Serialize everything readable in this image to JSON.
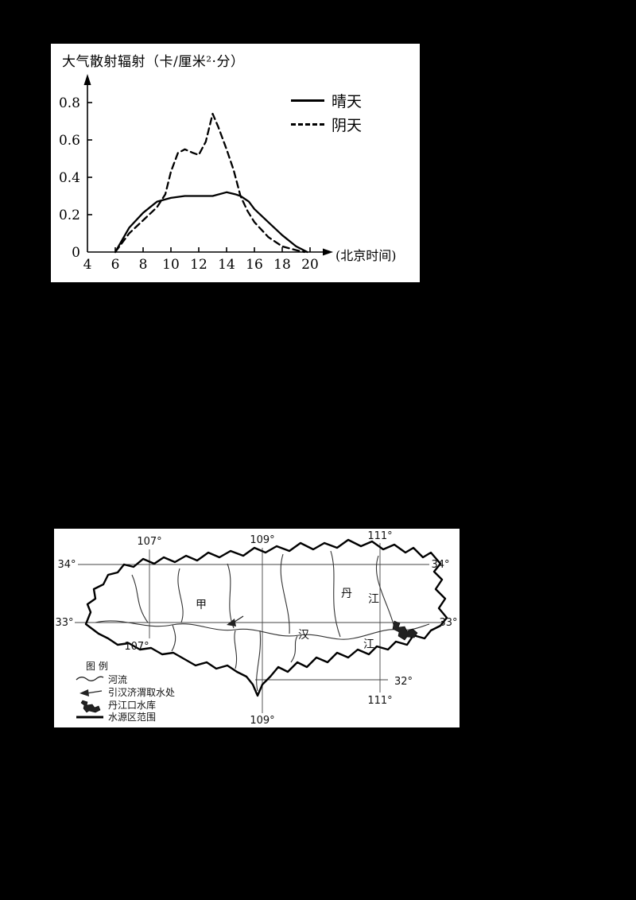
{
  "page": {
    "background": "#000000",
    "panel_background": "#ffffff"
  },
  "chart_data": {
    "type": "line",
    "title": "大气散射辐射（卡/厘米²·分）",
    "xlabel": "(北京时间)",
    "x_ticks": [
      4,
      6,
      8,
      10,
      12,
      14,
      16,
      18,
      20
    ],
    "y_ticks": [
      0,
      0.2,
      0.4,
      0.6,
      0.8
    ],
    "xlim": [
      4,
      21
    ],
    "ylim": [
      0,
      0.85
    ],
    "grid": false,
    "legend_position": "top-right",
    "series": [
      {
        "name": "晴天",
        "style": "solid",
        "x": [
          6,
          7,
          8,
          9,
          10,
          11,
          12,
          13,
          14,
          14.6,
          15,
          15.6,
          16,
          17,
          18,
          19,
          19.8
        ],
        "y": [
          0,
          0.13,
          0.21,
          0.27,
          0.29,
          0.3,
          0.3,
          0.3,
          0.32,
          0.31,
          0.3,
          0.27,
          0.23,
          0.16,
          0.09,
          0.03,
          0
        ]
      },
      {
        "name": "阴天",
        "style": "dashed",
        "x": [
          6,
          7,
          8,
          9,
          9.6,
          10,
          10.5,
          11,
          11.6,
          12,
          12.5,
          13,
          13.4,
          14,
          14.5,
          15,
          15.5,
          16,
          17,
          18,
          19,
          19.6
        ],
        "y": [
          0,
          0.1,
          0.17,
          0.24,
          0.31,
          0.43,
          0.53,
          0.55,
          0.53,
          0.52,
          0.59,
          0.74,
          0.67,
          0.55,
          0.44,
          0.3,
          0.22,
          0.16,
          0.08,
          0.03,
          0.01,
          0
        ]
      }
    ]
  },
  "map": {
    "labels": {
      "lon_107_top": "107°",
      "lon_109_top": "109°",
      "lon_111_top": "111°",
      "lat_34_left": "34°",
      "lat_34_right": "34°",
      "lat_33_left": "33°",
      "lat_33_right": "33°",
      "lon_107_mid": "107°",
      "lat_32": "32°",
      "lon_111_low": "111°",
      "lon_109_bottom": "109°",
      "point_jia": "甲",
      "dan": "丹",
      "dan_jiang": "江",
      "han": "汉",
      "han_jiang": "江"
    },
    "legend": {
      "title": "图  例",
      "items": [
        {
          "symbol": "river-line",
          "label": "河流"
        },
        {
          "symbol": "intake-arrow",
          "label": "引汉济渭取水处"
        },
        {
          "symbol": "reservoir-patch",
          "label": "丹江口水库"
        },
        {
          "symbol": "boundary-line",
          "label": "水源区范围"
        }
      ]
    }
  }
}
